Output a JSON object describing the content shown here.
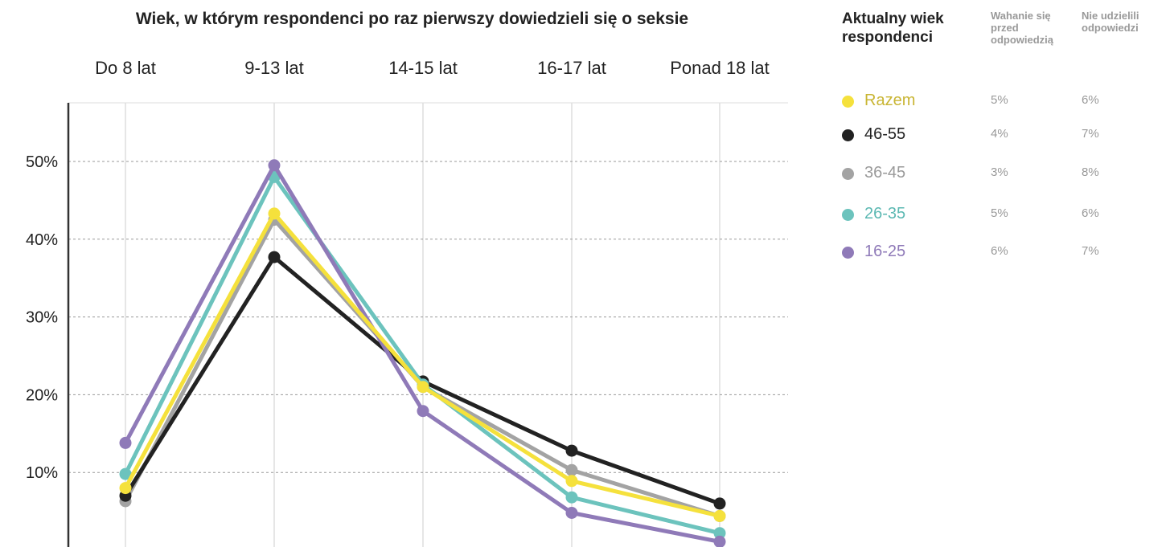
{
  "chart_data": {
    "type": "line",
    "title": "Wiek, w którym respondenci po raz pierwszy dowiedzieli się o seksie",
    "categories": [
      "Do 8 lat",
      "9-13 lat",
      "14-15 lat",
      "16-17 lat",
      "Ponad 18 lat"
    ],
    "y_ticks": [
      "10%",
      "20%",
      "30%",
      "40%",
      "50%"
    ],
    "y_tick_values": [
      10,
      20,
      30,
      40,
      50
    ],
    "ylim": [
      0,
      56
    ],
    "grid": true,
    "series": [
      {
        "name": "36-45",
        "color": "#a3a3a3",
        "values": [
          6.3,
          42.5,
          21.0,
          10.3,
          4.4
        ]
      },
      {
        "name": "46-55",
        "color": "#222222",
        "values": [
          7.0,
          37.7,
          21.7,
          12.8,
          6.0
        ]
      },
      {
        "name": "26-35",
        "color": "#6cc3bd",
        "values": [
          9.8,
          48.0,
          21.3,
          6.8,
          2.2
        ]
      },
      {
        "name": "16-25",
        "color": "#8f7ab8",
        "values": [
          13.8,
          49.5,
          17.9,
          4.8,
          1.1
        ]
      },
      {
        "name": "Razem",
        "color": "#f5e13c",
        "values": [
          8.0,
          43.3,
          21.0,
          8.9,
          4.4
        ]
      }
    ]
  },
  "legend": {
    "title": "Aktualny wiek respondenci",
    "col_hesitation": "Wahanie się przed odpowiedzią",
    "col_no_answer": "Nie udzielili odpowiedzi",
    "rows": [
      {
        "label": "Razem",
        "dot_color": "#f5e13c",
        "label_color": "#c9b533",
        "hesitation": "5%",
        "no_answer": "6%"
      },
      {
        "label": "46-55",
        "dot_color": "#222222",
        "label_color": "#222222",
        "hesitation": "4%",
        "no_answer": "7%"
      },
      {
        "label": "36-45",
        "dot_color": "#a3a3a3",
        "label_color": "#9a9a9a",
        "hesitation": "3%",
        "no_answer": "8%"
      },
      {
        "label": "26-35",
        "dot_color": "#6cc3bd",
        "label_color": "#5bb8b2",
        "hesitation": "5%",
        "no_answer": "6%"
      },
      {
        "label": "16-25",
        "dot_color": "#8f7ab8",
        "label_color": "#8f7ab8",
        "hesitation": "6%",
        "no_answer": "7%"
      }
    ]
  }
}
